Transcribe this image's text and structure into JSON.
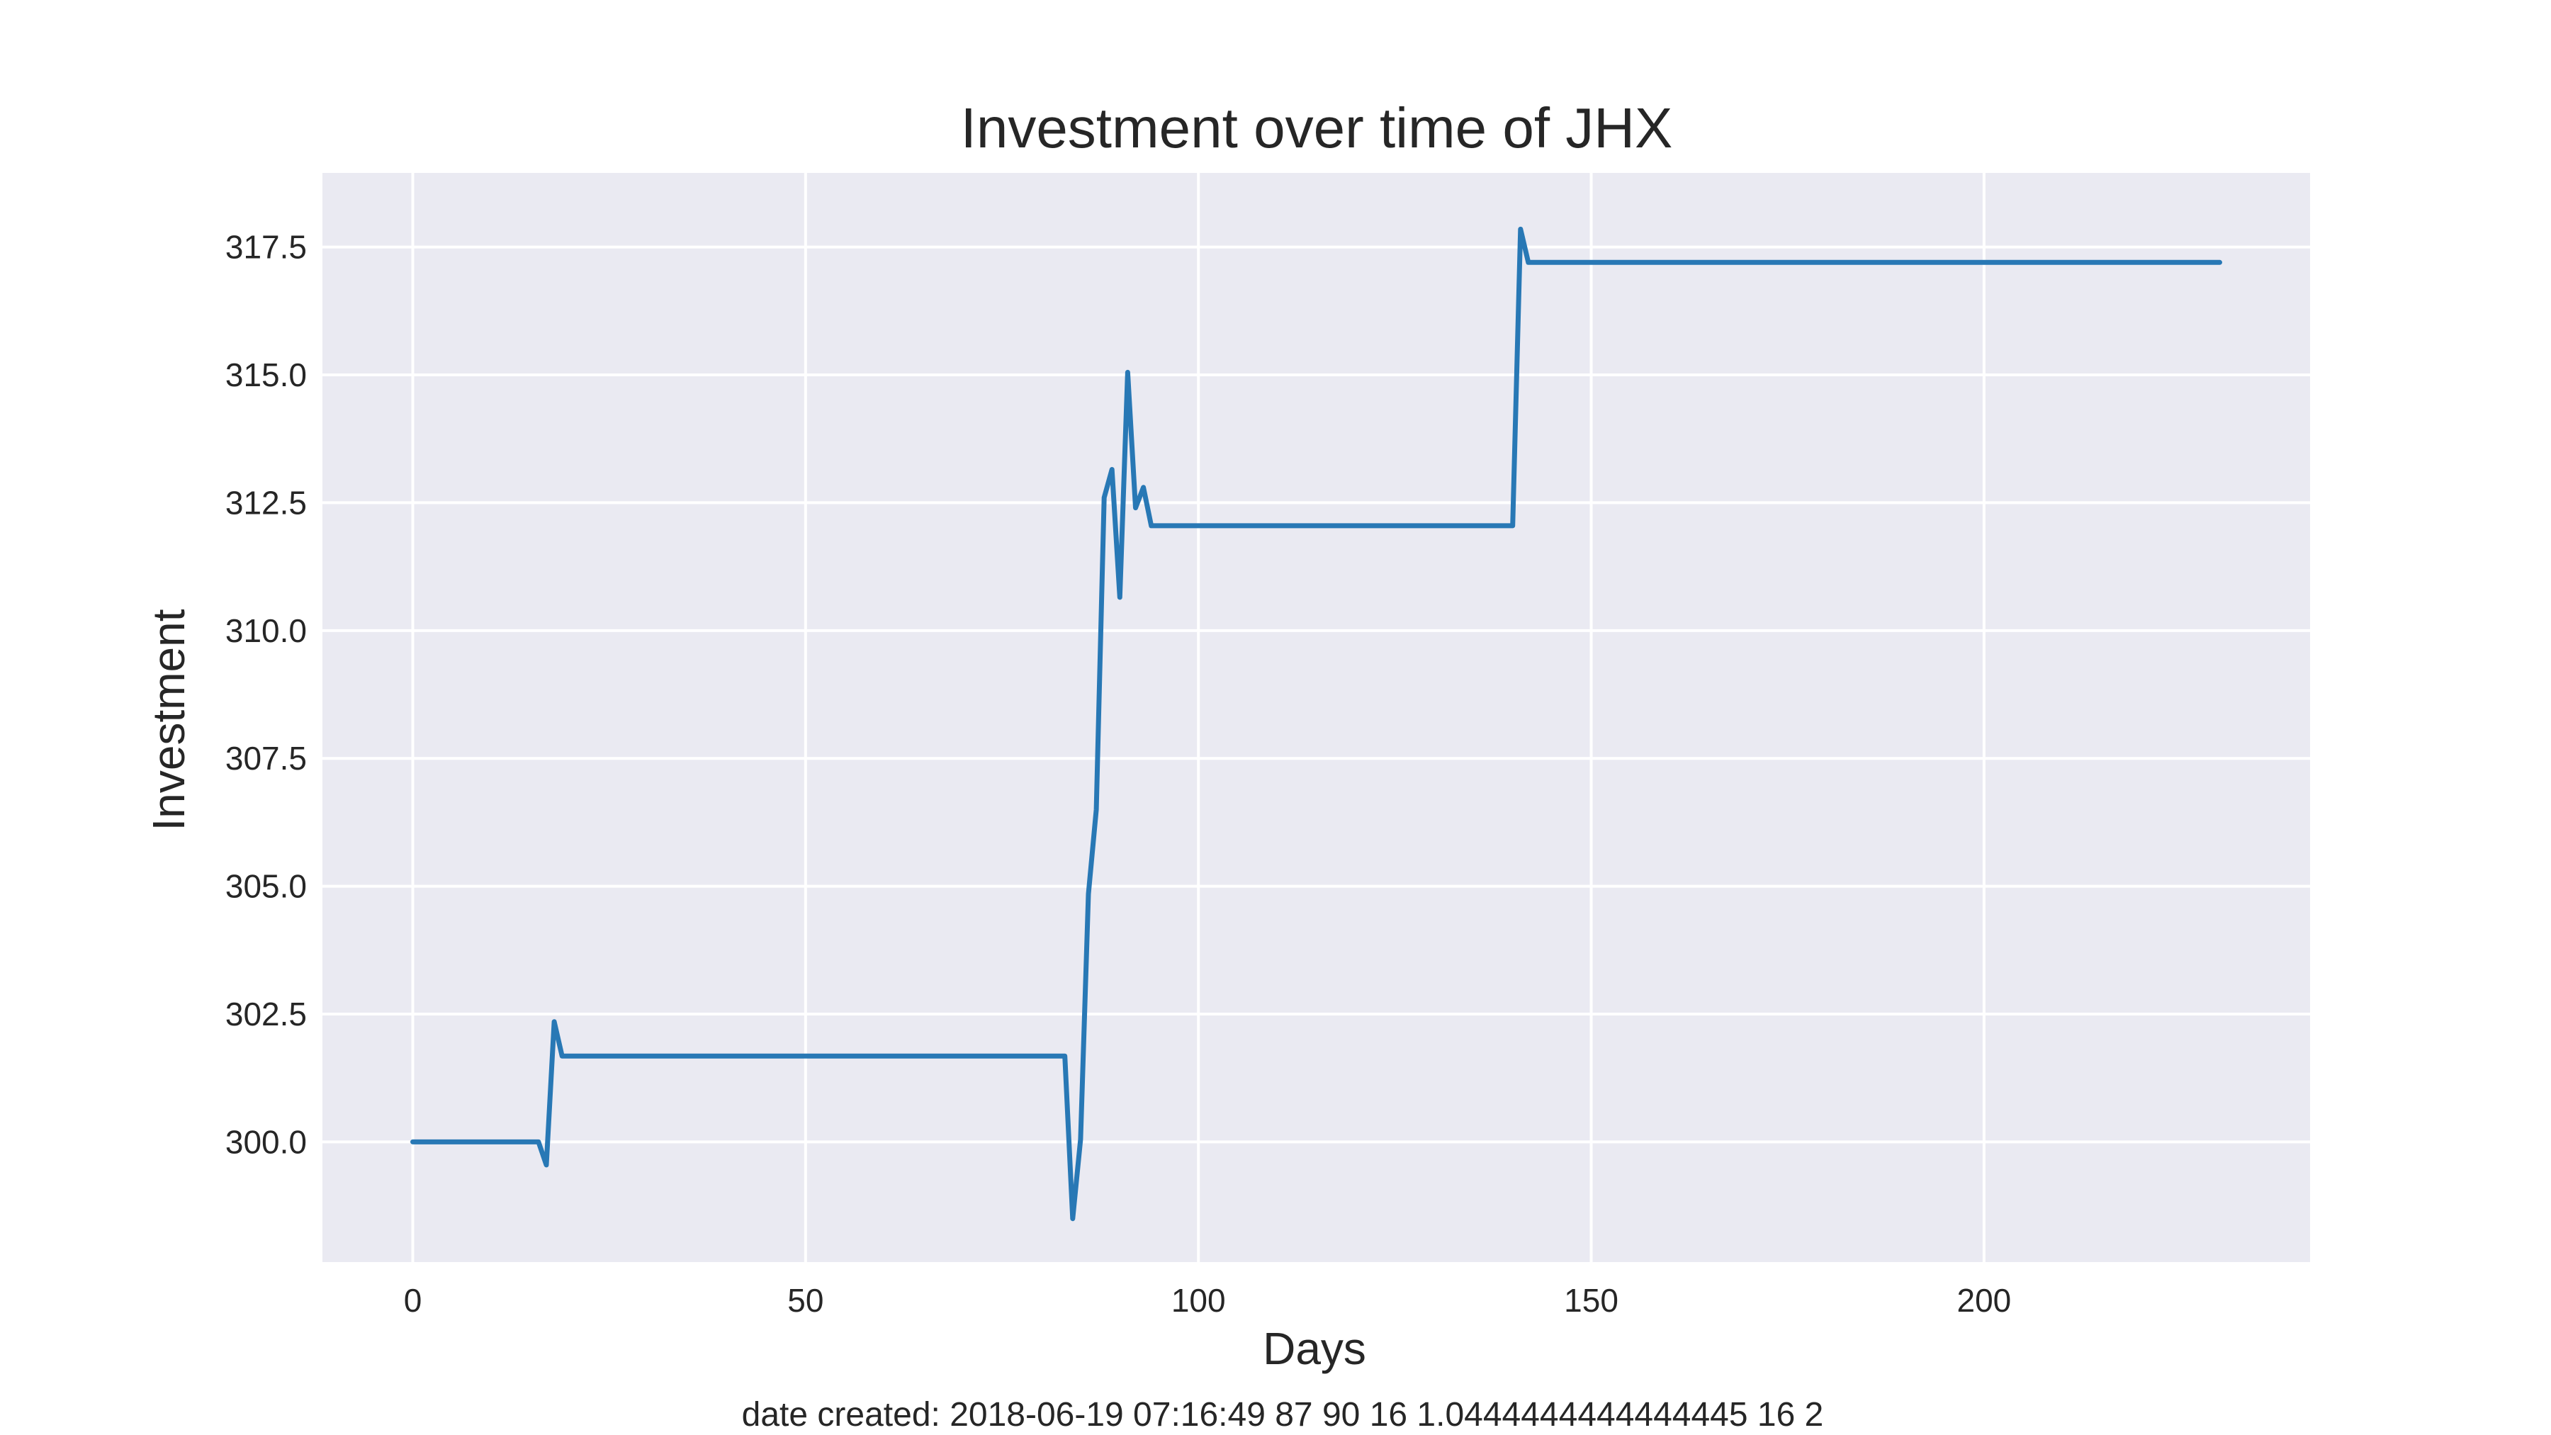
{
  "chart_data": {
    "type": "line",
    "title": "Investment over time of JHX",
    "xlabel": "Days",
    "ylabel": "Investment",
    "xlim": [
      -11.5,
      241.5
    ],
    "ylim": [
      297.65,
      318.95
    ],
    "xticks": [
      0,
      50,
      100,
      150,
      200
    ],
    "xtick_labels": [
      "0",
      "50",
      "100",
      "150",
      "200"
    ],
    "yticks": [
      300.0,
      302.5,
      305.0,
      307.5,
      310.0,
      312.5,
      315.0,
      317.5
    ],
    "ytick_labels": [
      "300.0",
      "302.5",
      "305.0",
      "307.5",
      "310.0",
      "312.5",
      "315.0",
      "317.5"
    ],
    "grid": true,
    "legend": "none",
    "background_color": "#eaeaf2",
    "grid_color": "#ffffff",
    "series": [
      {
        "color": "#2878b5",
        "x": [
          0,
          16,
          17,
          18,
          19,
          83,
          84,
          85,
          86,
          87,
          88,
          89,
          90,
          91,
          92,
          93,
          94,
          140,
          141,
          142,
          230
        ],
        "y": [
          300.0,
          300.0,
          299.55,
          302.35,
          301.68,
          301.68,
          298.5,
          300.05,
          304.85,
          306.5,
          312.6,
          313.15,
          310.65,
          315.05,
          312.4,
          312.8,
          312.05,
          312.05,
          317.85,
          317.2,
          317.2
        ]
      }
    ]
  },
  "footer": {
    "text": "date created: 2018-06-19 07:16:49 87 90 16 1.0444444444444445 16 2"
  }
}
